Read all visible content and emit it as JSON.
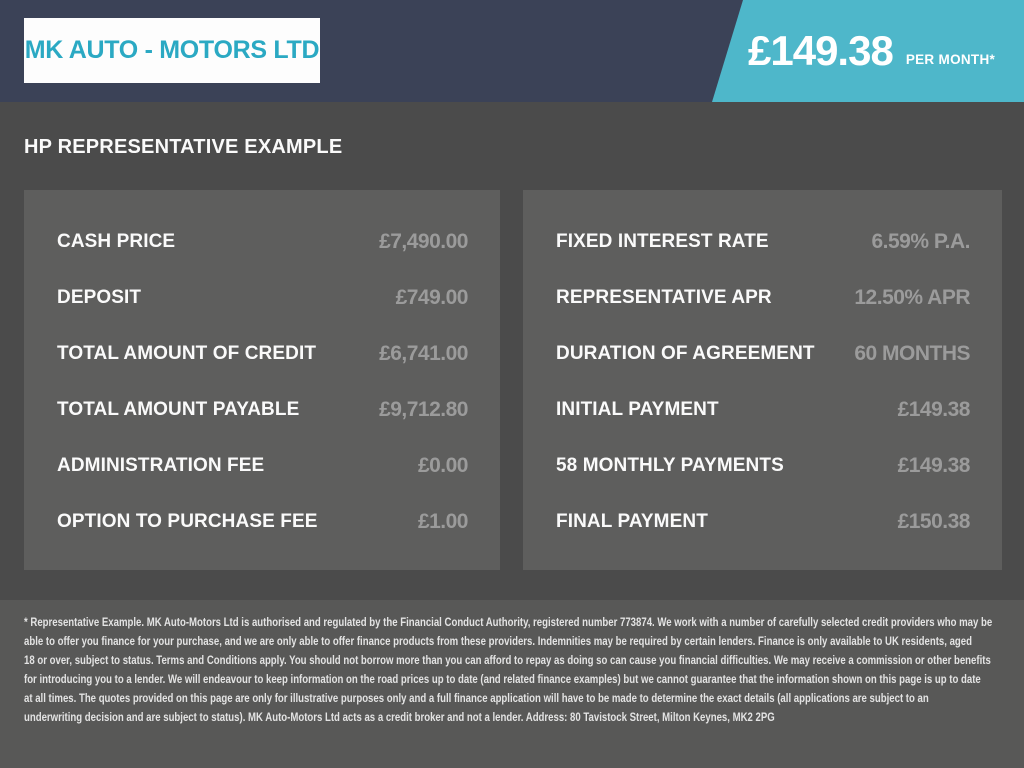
{
  "header": {
    "logo_text": "MK AUTO - MOTORS LTD",
    "price": "£149.38",
    "price_suffix": "PER MONTH*"
  },
  "main": {
    "heading": "HP REPRESENTATIVE EXAMPLE",
    "left_panel": {
      "rows": [
        {
          "label": "CASH PRICE",
          "value": "£7,490.00"
        },
        {
          "label": "DEPOSIT",
          "value": "£749.00"
        },
        {
          "label": "TOTAL AMOUNT OF CREDIT",
          "value": "£6,741.00"
        },
        {
          "label": "TOTAL AMOUNT PAYABLE",
          "value": "£9,712.80"
        },
        {
          "label": "ADMINISTRATION FEE",
          "value": "£0.00"
        },
        {
          "label": "OPTION TO PURCHASE FEE",
          "value": "£1.00"
        }
      ]
    },
    "right_panel": {
      "rows": [
        {
          "label": "FIXED INTEREST RATE",
          "value": "6.59% P.A."
        },
        {
          "label": "REPRESENTATIVE APR",
          "value": "12.50% APR"
        },
        {
          "label": "DURATION OF AGREEMENT",
          "value": "60 MONTHS"
        },
        {
          "label": "INITIAL PAYMENT",
          "value": "£149.38"
        },
        {
          "label": "58 MONTHLY PAYMENTS",
          "value": "£149.38"
        },
        {
          "label": "FINAL PAYMENT",
          "value": "£150.38"
        }
      ]
    }
  },
  "disclaimer": {
    "lines": [
      "* Representative Example. MK Auto-Motors Ltd is authorised and regulated by the Financial Conduct Authority, registered number 773874. We work with a number of carefully selected credit providers who may be",
      "able to offer you finance for your purchase, and we are only able to offer finance products from these providers. Indemnities may be required by certain lenders. Finance is only available to UK residents, aged",
      "18 or over, subject to status. Terms and Conditions apply. You should not borrow more than you can afford to repay as doing so can cause you financial difficulties. We may receive a commission or other benefits",
      "for introducing you to a lender. We will endeavour to keep information on the road prices up to date (and related finance examples) but we cannot guarantee that the information shown on this page is up to date",
      "at all times. The quotes provided on this page are only for illustrative purposes only and a full finance application will have to be made to determine the exact details (all applications are subject to an",
      "underwriting decision and are subject to status). MK Auto-Motors Ltd acts as a credit broker and not a lender. Address: 80 Tavistock Street, Milton Keynes, MK2 2PG"
    ]
  },
  "colors": {
    "header_bg": "#3b4257",
    "accent_teal": "#4eb7ca",
    "logo_teal": "#2ba9c3",
    "body_bg": "#4b4b4b",
    "panel_bg": "#5e5e5d",
    "disclaimer_bg": "#585857",
    "value_color": "#9b9b9b"
  }
}
